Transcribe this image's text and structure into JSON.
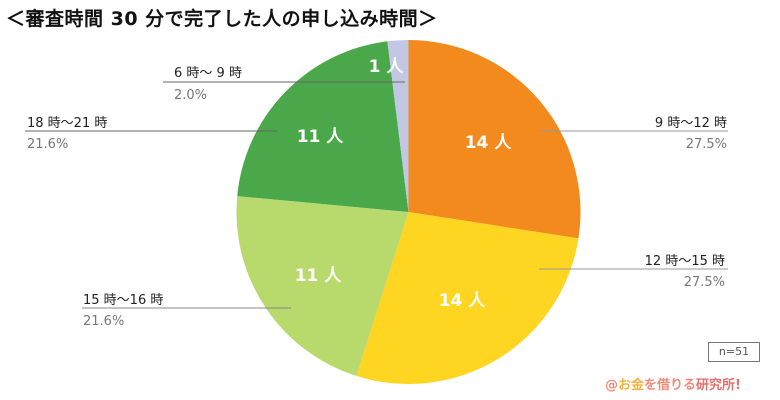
{
  "title": "＜審査時間 30 分で完了した人の申し込み時間＞",
  "chart_data": {
    "type": "pie",
    "title": "＜審査時間 30 分で完了した人の申し込み時間＞",
    "start_angle_deg": 0,
    "direction": "clockwise",
    "total_n": 51,
    "categories": [
      "9時〜12時",
      "12時〜15時",
      "15時〜16時",
      "18時〜21時",
      "6時〜9時"
    ],
    "values": [
      14,
      14,
      11,
      11,
      1
    ],
    "percentages": [
      27.5,
      27.5,
      21.6,
      21.6,
      2.0
    ],
    "colors": [
      "#f28a1d",
      "#fed520",
      "#b8d96c",
      "#4aa74a",
      "#c2c8e3"
    ],
    "legend_position": "callout"
  },
  "slices": [
    {
      "label": "9 時〜12 時",
      "count_label": "14 人",
      "pct_label": "27.5%",
      "value": 14,
      "color": "#f28a1d"
    },
    {
      "label": "12 時〜15 時",
      "count_label": "14 人",
      "pct_label": "27.5%",
      "value": 14,
      "color": "#fed520"
    },
    {
      "label": "15 時〜16 時",
      "count_label": "11 人",
      "pct_label": "21.6%",
      "value": 11,
      "color": "#b8d96c"
    },
    {
      "label": "18 時〜21 時",
      "count_label": "11 人",
      "pct_label": "21.6%",
      "value": 11,
      "color": "#4aa74a"
    },
    {
      "label": "6 時〜 9 時",
      "count_label": "1 人",
      "pct_label": "2.0%",
      "value": 1,
      "color": "#c2c8e3"
    }
  ],
  "sample_size": "n=51",
  "brand": {
    "part1": "@",
    "part2": "お金",
    "part3": "を借りる",
    "part4": "研究所!"
  }
}
